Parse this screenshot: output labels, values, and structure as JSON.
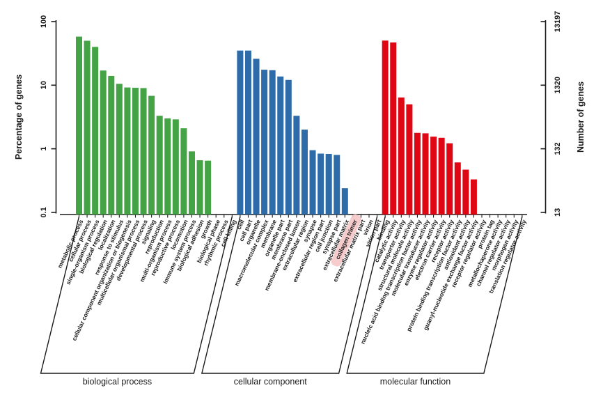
{
  "chart_data": {
    "type": "bar",
    "title": "",
    "ylabel_left": "Percentage of genes",
    "ylabel_right": "Number of genes",
    "scale": "log",
    "ylim": [
      0.1,
      100
    ],
    "right_ylim": [
      13,
      13197
    ],
    "grid": false,
    "y_axis_left_ticks": [
      "100",
      "10",
      "1",
      "0.1"
    ],
    "y_axis_right_ticks": [
      "13197",
      "1320",
      "132",
      "13"
    ],
    "highlight": {
      "label": "collagen trimer",
      "color": "#F5C6C6"
    },
    "groups": [
      {
        "name": "biological process",
        "color": "#44A344",
        "items": [
          {
            "label": "metabolic process",
            "value": 58
          },
          {
            "label": "cellular process",
            "value": 50
          },
          {
            "label": "single-organism process",
            "value": 40
          },
          {
            "label": "biological regulation",
            "value": 17
          },
          {
            "label": "localization",
            "value": 14
          },
          {
            "label": "response to stimulus",
            "value": 10.5
          },
          {
            "label": "cellular component organization or biogenesis",
            "value": 9.2
          },
          {
            "label": "multicellular organismal process",
            "value": 9.1
          },
          {
            "label": "developmental process",
            "value": 9.0
          },
          {
            "label": "signaling",
            "value": 6.8
          },
          {
            "label": "reproduction",
            "value": 3.3
          },
          {
            "label": "multi-organism process",
            "value": 3.0
          },
          {
            "label": "reproductive process",
            "value": 2.9
          },
          {
            "label": "locomotion",
            "value": 2.1
          },
          {
            "label": "immune system process",
            "value": 0.91
          },
          {
            "label": "biological adhesion",
            "value": 0.66
          },
          {
            "label": "growth",
            "value": 0.65
          },
          {
            "label": "biological phase",
            "value": null
          },
          {
            "label": "rhythmic process",
            "value": null
          },
          {
            "label": "cell killing",
            "value": null
          }
        ]
      },
      {
        "name": "cellular component",
        "color": "#2D6CA9",
        "items": [
          {
            "label": "cell",
            "value": 35
          },
          {
            "label": "cell part",
            "value": 35
          },
          {
            "label": "organelle",
            "value": 26
          },
          {
            "label": "macromolecular complex",
            "value": 17.5
          },
          {
            "label": "membrane",
            "value": 17.2
          },
          {
            "label": "organelle part",
            "value": 13.7
          },
          {
            "label": "membrane part",
            "value": 12.1
          },
          {
            "label": "membrane-enclosed lumen",
            "value": 3.3
          },
          {
            "label": "extracellular region",
            "value": 2.0
          },
          {
            "label": "synapse",
            "value": 0.95
          },
          {
            "label": "extracellular region part",
            "value": 0.84
          },
          {
            "label": "cell junction",
            "value": 0.83
          },
          {
            "label": "synapse part",
            "value": 0.8
          },
          {
            "label": "extracellular matrix",
            "value": 0.24
          },
          {
            "label": "collagen trimer",
            "value": null
          },
          {
            "label": "extracellular matrix part",
            "value": null
          },
          {
            "label": "virion",
            "value": null
          },
          {
            "label": "virion part",
            "value": null
          }
        ]
      },
      {
        "name": "molecular function",
        "color": "#DF0714",
        "items": [
          {
            "label": "binding",
            "value": 50.3
          },
          {
            "label": "catalytic activity",
            "value": 47
          },
          {
            "label": "transporter activity",
            "value": 6.4
          },
          {
            "label": "structural molecule activity",
            "value": 5.0
          },
          {
            "label": "nucleic acid binding transcription factor activity",
            "value": 1.78
          },
          {
            "label": "molecular transducer activity",
            "value": 1.75
          },
          {
            "label": "enzyme regulator activity",
            "value": 1.55
          },
          {
            "label": "electron carrier activity",
            "value": 1.49
          },
          {
            "label": "receptor activity",
            "value": 1.22
          },
          {
            "label": "protein binding transcription factor activity",
            "value": 0.61
          },
          {
            "label": "antioxidant activity",
            "value": 0.47
          },
          {
            "label": "guanyl-nucleotide exchange factor activity",
            "value": 0.33
          },
          {
            "label": "receptor regulator activity",
            "value": null
          },
          {
            "label": "protein tag",
            "value": null
          },
          {
            "label": "metallochaperone activity",
            "value": null
          },
          {
            "label": "channel regulator activity",
            "value": null
          },
          {
            "label": "morphogen activity",
            "value": null
          },
          {
            "label": "translation regulator activity",
            "value": null
          }
        ]
      }
    ]
  }
}
